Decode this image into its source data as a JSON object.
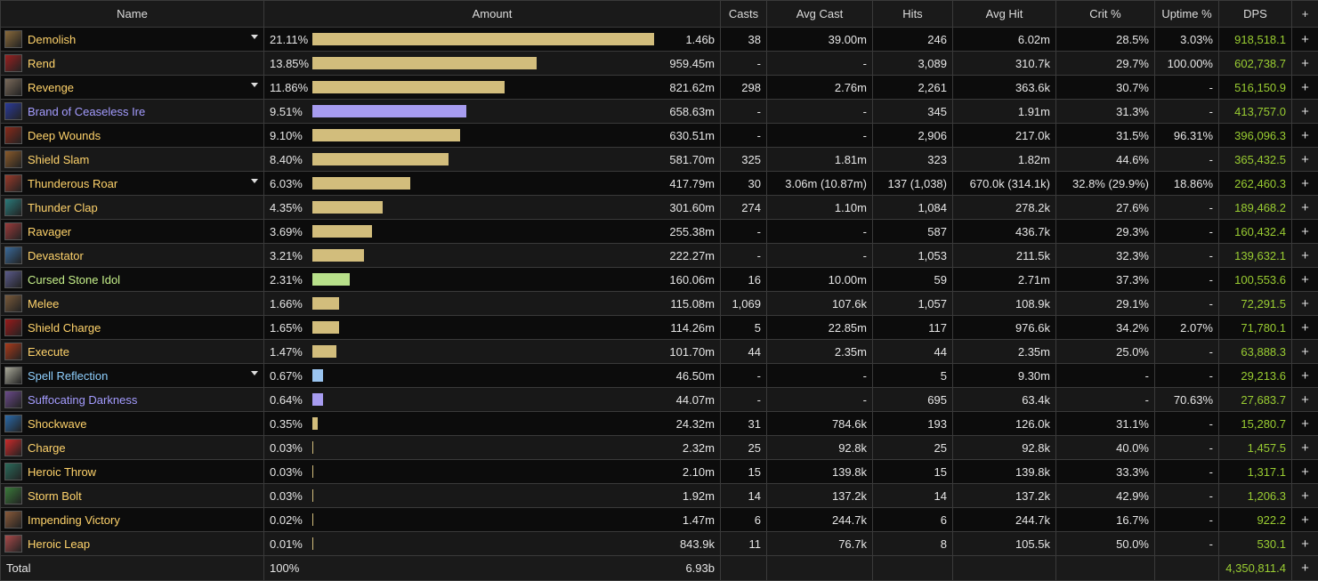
{
  "header": {
    "name": "Name",
    "amount": "Amount",
    "casts": "Casts",
    "avg_cast": "Avg Cast",
    "hits": "Hits",
    "avg_hit": "Avg Hit",
    "crit": "Crit %",
    "uptime": "Uptime %",
    "dps": "DPS",
    "plus": "+"
  },
  "rows": [
    {
      "name": "Demolish",
      "color": "#ffd36b",
      "icon": "demolish-icon",
      "icon_color": "#8a6a3a",
      "expand": true,
      "pct": "21.11%",
      "bar": 21.11,
      "bar_color": "#d2bd7c",
      "amount": "1.46b",
      "casts": "38",
      "avg_cast": "39.00m",
      "hits": "246",
      "avg_hit": "6.02m",
      "crit": "28.5%",
      "uptime": "3.03%",
      "dps": "918,518.1"
    },
    {
      "name": "Rend",
      "color": "#ffd36b",
      "icon": "rend-icon",
      "icon_color": "#9a2020",
      "expand": false,
      "pct": "13.85%",
      "bar": 13.85,
      "bar_color": "#d2bd7c",
      "amount": "959.45m",
      "casts": "-",
      "avg_cast": "-",
      "hits": "3,089",
      "avg_hit": "310.7k",
      "crit": "29.7%",
      "uptime": "100.00%",
      "dps": "602,738.7"
    },
    {
      "name": "Revenge",
      "color": "#ffd36b",
      "icon": "revenge-icon",
      "icon_color": "#7a6a5a",
      "expand": true,
      "pct": "11.86%",
      "bar": 11.86,
      "bar_color": "#d2bd7c",
      "amount": "821.62m",
      "casts": "298",
      "avg_cast": "2.76m",
      "hits": "2,261",
      "avg_hit": "363.6k",
      "crit": "30.7%",
      "uptime": "-",
      "dps": "516,150.9"
    },
    {
      "name": "Brand of Ceaseless Ire",
      "color": "#a49cff",
      "icon": "brand-of-ceaseless-ire-icon",
      "icon_color": "#2a3a9a",
      "expand": false,
      "pct": "9.51%",
      "bar": 9.51,
      "bar_color": "#a79cf0",
      "amount": "658.63m",
      "casts": "-",
      "avg_cast": "-",
      "hits": "345",
      "avg_hit": "1.91m",
      "crit": "31.3%",
      "uptime": "-",
      "dps": "413,757.0"
    },
    {
      "name": "Deep Wounds",
      "color": "#ffd36b",
      "icon": "deep-wounds-icon",
      "icon_color": "#8a2a1a",
      "expand": false,
      "pct": "9.10%",
      "bar": 9.1,
      "bar_color": "#d2bd7c",
      "amount": "630.51m",
      "casts": "-",
      "avg_cast": "-",
      "hits": "2,906",
      "avg_hit": "217.0k",
      "crit": "31.5%",
      "uptime": "96.31%",
      "dps": "396,096.3"
    },
    {
      "name": "Shield Slam",
      "color": "#ffd36b",
      "icon": "shield-slam-icon",
      "icon_color": "#8a5a2a",
      "expand": false,
      "pct": "8.40%",
      "bar": 8.4,
      "bar_color": "#d2bd7c",
      "amount": "581.70m",
      "casts": "325",
      "avg_cast": "1.81m",
      "hits": "323",
      "avg_hit": "1.82m",
      "crit": "44.6%",
      "uptime": "-",
      "dps": "365,432.5"
    },
    {
      "name": "Thunderous Roar",
      "color": "#ffd36b",
      "icon": "thunderous-roar-icon",
      "icon_color": "#9a3a2a",
      "expand": true,
      "pct": "6.03%",
      "bar": 6.03,
      "bar_color": "#d2bd7c",
      "amount": "417.79m",
      "casts": "30",
      "avg_cast": "3.06m (10.87m)",
      "hits": "137 (1,038)",
      "avg_hit": "670.0k (314.1k)",
      "crit": "32.8% (29.9%)",
      "uptime": "18.86%",
      "dps": "262,460.3"
    },
    {
      "name": "Thunder Clap",
      "color": "#ffd36b",
      "icon": "thunder-clap-icon",
      "icon_color": "#2a7a7a",
      "expand": false,
      "pct": "4.35%",
      "bar": 4.35,
      "bar_color": "#d2bd7c",
      "amount": "301.60m",
      "casts": "274",
      "avg_cast": "1.10m",
      "hits": "1,084",
      "avg_hit": "278.2k",
      "crit": "27.6%",
      "uptime": "-",
      "dps": "189,468.2"
    },
    {
      "name": "Ravager",
      "color": "#ffd36b",
      "icon": "ravager-icon",
      "icon_color": "#9a3a3a",
      "expand": false,
      "pct": "3.69%",
      "bar": 3.69,
      "bar_color": "#d2bd7c",
      "amount": "255.38m",
      "casts": "-",
      "avg_cast": "-",
      "hits": "587",
      "avg_hit": "436.7k",
      "crit": "29.3%",
      "uptime": "-",
      "dps": "160,432.4"
    },
    {
      "name": "Devastator",
      "color": "#ffd36b",
      "icon": "devastator-icon",
      "icon_color": "#3a6a9a",
      "expand": false,
      "pct": "3.21%",
      "bar": 3.21,
      "bar_color": "#d2bd7c",
      "amount": "222.27m",
      "casts": "-",
      "avg_cast": "-",
      "hits": "1,053",
      "avg_hit": "211.5k",
      "crit": "32.3%",
      "uptime": "-",
      "dps": "139,632.1"
    },
    {
      "name": "Cursed Stone Idol",
      "color": "#c6f08a",
      "icon": "cursed-stone-idol-icon",
      "icon_color": "#5a5a8a",
      "expand": false,
      "pct": "2.31%",
      "bar": 2.31,
      "bar_color": "#b8e08a",
      "amount": "160.06m",
      "casts": "16",
      "avg_cast": "10.00m",
      "hits": "59",
      "avg_hit": "2.71m",
      "crit": "37.3%",
      "uptime": "-",
      "dps": "100,553.6"
    },
    {
      "name": "Melee",
      "color": "#ffd36b",
      "icon": "melee-icon",
      "icon_color": "#7a5a3a",
      "expand": false,
      "pct": "1.66%",
      "bar": 1.66,
      "bar_color": "#d2bd7c",
      "amount": "115.08m",
      "casts": "1,069",
      "avg_cast": "107.6k",
      "hits": "1,057",
      "avg_hit": "108.9k",
      "crit": "29.1%",
      "uptime": "-",
      "dps": "72,291.5"
    },
    {
      "name": "Shield Charge",
      "color": "#ffd36b",
      "icon": "shield-charge-icon",
      "icon_color": "#9a1a1a",
      "expand": false,
      "pct": "1.65%",
      "bar": 1.65,
      "bar_color": "#d2bd7c",
      "amount": "114.26m",
      "casts": "5",
      "avg_cast": "22.85m",
      "hits": "117",
      "avg_hit": "976.6k",
      "crit": "34.2%",
      "uptime": "2.07%",
      "dps": "71,780.1"
    },
    {
      "name": "Execute",
      "color": "#ffd36b",
      "icon": "execute-icon",
      "icon_color": "#aa3a1a",
      "expand": false,
      "pct": "1.47%",
      "bar": 1.47,
      "bar_color": "#d2bd7c",
      "amount": "101.70m",
      "casts": "44",
      "avg_cast": "2.35m",
      "hits": "44",
      "avg_hit": "2.35m",
      "crit": "25.0%",
      "uptime": "-",
      "dps": "63,888.3"
    },
    {
      "name": "Spell Reflection",
      "color": "#8fd0ff",
      "icon": "spell-reflection-icon",
      "icon_color": "#aaaa9a",
      "expand": true,
      "pct": "0.67%",
      "bar": 0.67,
      "bar_color": "#9ac4f0",
      "amount": "46.50m",
      "casts": "-",
      "avg_cast": "-",
      "hits": "5",
      "avg_hit": "9.30m",
      "crit": "-",
      "uptime": "-",
      "dps": "29,213.6"
    },
    {
      "name": "Suffocating Darkness",
      "color": "#a49cff",
      "icon": "suffocating-darkness-icon",
      "icon_color": "#6a4a8a",
      "expand": false,
      "pct": "0.64%",
      "bar": 0.64,
      "bar_color": "#a79cf0",
      "amount": "44.07m",
      "casts": "-",
      "avg_cast": "-",
      "hits": "695",
      "avg_hit": "63.4k",
      "crit": "-",
      "uptime": "70.63%",
      "dps": "27,683.7"
    },
    {
      "name": "Shockwave",
      "color": "#ffd36b",
      "icon": "shockwave-icon",
      "icon_color": "#2a6aaa",
      "expand": false,
      "pct": "0.35%",
      "bar": 0.35,
      "bar_color": "#d2bd7c",
      "amount": "24.32m",
      "casts": "31",
      "avg_cast": "784.6k",
      "hits": "193",
      "avg_hit": "126.0k",
      "crit": "31.1%",
      "uptime": "-",
      "dps": "15,280.7"
    },
    {
      "name": "Charge",
      "color": "#ffd36b",
      "icon": "charge-icon",
      "icon_color": "#cc2a2a",
      "expand": false,
      "pct": "0.03%",
      "bar": 0.03,
      "bar_color": "#d2bd7c",
      "amount": "2.32m",
      "casts": "25",
      "avg_cast": "92.8k",
      "hits": "25",
      "avg_hit": "92.8k",
      "crit": "40.0%",
      "uptime": "-",
      "dps": "1,457.5"
    },
    {
      "name": "Heroic Throw",
      "color": "#ffd36b",
      "icon": "heroic-throw-icon",
      "icon_color": "#2a6a5a",
      "expand": false,
      "pct": "0.03%",
      "bar": 0.03,
      "bar_color": "#d2bd7c",
      "amount": "2.10m",
      "casts": "15",
      "avg_cast": "139.8k",
      "hits": "15",
      "avg_hit": "139.8k",
      "crit": "33.3%",
      "uptime": "-",
      "dps": "1,317.1"
    },
    {
      "name": "Storm Bolt",
      "color": "#ffd36b",
      "icon": "storm-bolt-icon",
      "icon_color": "#3a7a3a",
      "expand": false,
      "pct": "0.03%",
      "bar": 0.03,
      "bar_color": "#d2bd7c",
      "amount": "1.92m",
      "casts": "14",
      "avg_cast": "137.2k",
      "hits": "14",
      "avg_hit": "137.2k",
      "crit": "42.9%",
      "uptime": "-",
      "dps": "1,206.3"
    },
    {
      "name": "Impending Victory",
      "color": "#ffd36b",
      "icon": "impending-victory-icon",
      "icon_color": "#8a5a3a",
      "expand": false,
      "pct": "0.02%",
      "bar": 0.02,
      "bar_color": "#d2bd7c",
      "amount": "1.47m",
      "casts": "6",
      "avg_cast": "244.7k",
      "hits": "6",
      "avg_hit": "244.7k",
      "crit": "16.7%",
      "uptime": "-",
      "dps": "922.2"
    },
    {
      "name": "Heroic Leap",
      "color": "#ffd36b",
      "icon": "heroic-leap-icon",
      "icon_color": "#aa4a4a",
      "expand": false,
      "pct": "0.01%",
      "bar": 0.01,
      "bar_color": "#d2bd7c",
      "amount": "843.9k",
      "casts": "11",
      "avg_cast": "76.7k",
      "hits": "8",
      "avg_hit": "105.5k",
      "crit": "50.0%",
      "uptime": "-",
      "dps": "530.1"
    }
  ],
  "total": {
    "label": "Total",
    "pct": "100%",
    "amount": "6.93b",
    "dps": "4,350,811.4"
  },
  "colors": {
    "dps": "#9acd32"
  }
}
